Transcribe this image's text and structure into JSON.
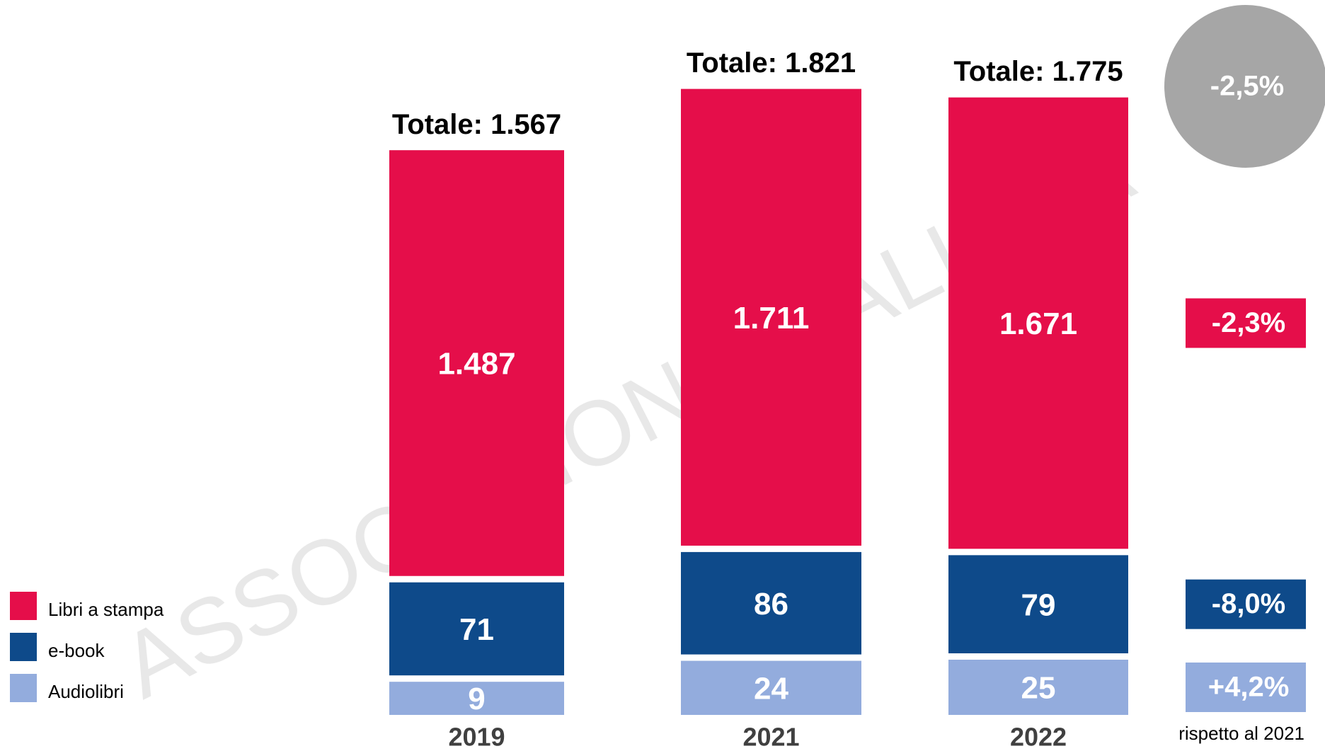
{
  "chart_data": {
    "type": "stacked_bar",
    "categories": [
      "2019",
      "2021",
      "2022"
    ],
    "series": [
      {
        "name": "Libri a stampa",
        "color": "#e50e4a",
        "values": [
          1487,
          1711,
          1671
        ],
        "value_labels": [
          "1.487",
          "1.711",
          "1.671"
        ],
        "change": -2.3,
        "change_label": "-2,3%"
      },
      {
        "name": "e-book",
        "color": "#0e4a8a",
        "values": [
          71,
          86,
          79
        ],
        "change": -8.0,
        "change_label": "-8,0%"
      },
      {
        "name": "Audiolibri",
        "color": "#93acdd",
        "values": [
          9,
          24,
          25
        ],
        "change": 4.2,
        "change_label": "+4,2%"
      }
    ],
    "totals": {
      "values": [
        1567,
        1821,
        1775
      ],
      "value_labels": [
        "Totale: 1.567",
        "Totale: 1.821",
        "Totale: 1.775"
      ]
    },
    "total_change": -2.5,
    "total_change_label": "-2,5%",
    "change_note": "rispetto al 2021",
    "watermark": "ASSOCIAZIONE ITALIANA",
    "scale": "sqrt"
  }
}
